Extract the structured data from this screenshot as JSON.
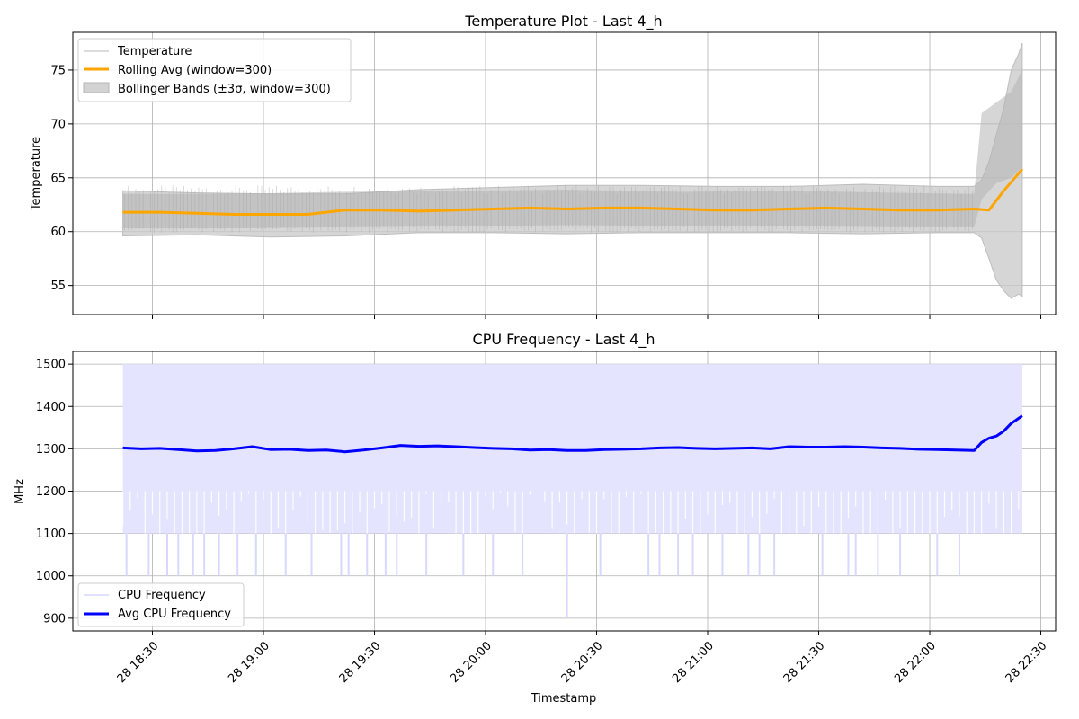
{
  "chart_data": [
    {
      "type": "line",
      "title": "Temperature Plot - Last 4_h",
      "xlabel": "",
      "ylabel": "Temperature",
      "ylim": [
        52.3,
        78.5
      ],
      "xlim_minutes": [
        -13.5,
        252
      ],
      "x_start_time": "28 18:22",
      "xticks": [
        "28 18:30",
        "28 19:00",
        "28 19:30",
        "28 20:00",
        "28 20:30",
        "28 21:00",
        "28 21:30",
        "28 22:00",
        "28 22:30"
      ],
      "yticks": [
        55,
        60,
        65,
        70,
        75
      ],
      "grid": true,
      "legend_position": "upper-left",
      "legend": [
        {
          "label": "Temperature",
          "color": "#dcdcdc"
        },
        {
          "label": "Rolling Avg (window=300)",
          "color": "#ffa500"
        },
        {
          "label": "Bollinger Bands (±3σ, window=300)",
          "color": "#c8c8c8"
        }
      ],
      "series": [
        {
          "name": "Temperature",
          "x_minutes": [
            0,
            30,
            60,
            90,
            120,
            150,
            180,
            210,
            230,
            232,
            236,
            240,
            243
          ],
          "low": [
            60.3,
            60.3,
            60.4,
            60.5,
            60.6,
            60.5,
            60.5,
            60.4,
            60.4,
            63.0,
            64.5,
            65.0,
            66.0
          ],
          "high": [
            63.5,
            63.5,
            63.7,
            63.8,
            63.9,
            63.7,
            63.8,
            63.6,
            63.5,
            71.0,
            72.0,
            73.0,
            75.0
          ]
        },
        {
          "name": "Rolling Avg (window=300)",
          "x_minutes": [
            0,
            10,
            20,
            30,
            40,
            50,
            60,
            70,
            80,
            90,
            100,
            110,
            120,
            130,
            140,
            150,
            160,
            170,
            180,
            190,
            200,
            210,
            220,
            230,
            234,
            238,
            241,
            243
          ],
          "values": [
            61.8,
            61.8,
            61.7,
            61.6,
            61.6,
            61.6,
            62.0,
            62.0,
            61.9,
            62.0,
            62.1,
            62.2,
            62.1,
            62.2,
            62.2,
            62.1,
            62.0,
            62.0,
            62.1,
            62.2,
            62.1,
            62.0,
            62.0,
            62.1,
            62.0,
            63.8,
            65.0,
            65.8
          ]
        },
        {
          "name": "Bollinger Bands (±3σ, window=300)",
          "x_minutes": [
            0,
            20,
            40,
            60,
            80,
            100,
            120,
            140,
            160,
            180,
            200,
            220,
            230,
            232,
            234,
            236,
            238,
            240,
            242,
            243
          ],
          "upper": [
            63.8,
            63.6,
            63.5,
            63.5,
            63.9,
            64.1,
            64.3,
            64.3,
            64.2,
            64.2,
            64.4,
            64.2,
            64.2,
            64.8,
            66.5,
            69.0,
            71.5,
            75.0,
            76.5,
            77.5
          ],
          "lower": [
            59.6,
            59.7,
            59.5,
            59.6,
            59.9,
            59.9,
            59.8,
            59.9,
            59.9,
            59.9,
            59.8,
            59.9,
            59.9,
            59.4,
            57.5,
            55.5,
            54.5,
            53.8,
            54.2,
            54.0
          ]
        }
      ]
    },
    {
      "type": "line",
      "title": "CPU Frequency - Last 4_h",
      "xlabel": "Timestamp",
      "ylabel": "MHz",
      "ylim": [
        870,
        1530
      ],
      "xlim_minutes": [
        -13.5,
        252
      ],
      "x_start_time": "28 18:22",
      "xticks": [
        "28 18:30",
        "28 19:00",
        "28 19:30",
        "28 20:00",
        "28 20:30",
        "28 21:00",
        "28 21:30",
        "28 22:00",
        "28 22:30"
      ],
      "yticks": [
        900,
        1000,
        1100,
        1200,
        1300,
        1400,
        1500
      ],
      "grid": true,
      "legend_position": "lower-left",
      "legend": [
        {
          "label": "CPU Frequency",
          "color": "#e0e0ff"
        },
        {
          "label": "Avg CPU Frequency",
          "color": "#0000ff"
        }
      ],
      "series": [
        {
          "name": "CPU Frequency",
          "x_minutes": [
            0,
            243
          ],
          "band_low": 1100,
          "band_high": 1500,
          "dips_minutes": [
            1,
            7,
            12,
            15,
            19,
            22,
            26,
            31,
            36,
            44,
            51,
            59,
            61,
            66,
            71,
            74,
            82,
            92,
            100,
            108,
            120,
            129,
            142,
            145,
            150,
            154,
            162,
            169,
            172,
            176,
            189,
            196,
            198,
            204,
            210,
            220,
            226,
            235,
            238
          ],
          "dips_values": [
            1000,
            1000,
            1000,
            1000,
            1000,
            1000,
            1000,
            1000,
            1000,
            1000,
            1000,
            1000,
            1000,
            1000,
            1000,
            1000,
            1000,
            1000,
            1000,
            1000,
            1000,
            1000,
            1000,
            1000,
            1000,
            1000,
            1000,
            1000,
            1000,
            1000,
            1000,
            1000,
            1000,
            1000,
            1000,
            1000,
            1000,
            1100,
            1100
          ],
          "deep_dip_minute": 120,
          "deep_dip_value": 900
        },
        {
          "name": "Avg CPU Frequency",
          "x_minutes": [
            0,
            5,
            10,
            15,
            20,
            25,
            30,
            35,
            40,
            45,
            50,
            55,
            60,
            65,
            70,
            75,
            80,
            85,
            90,
            95,
            100,
            105,
            110,
            115,
            120,
            125,
            130,
            135,
            140,
            145,
            150,
            155,
            160,
            165,
            170,
            175,
            180,
            185,
            190,
            195,
            200,
            205,
            210,
            215,
            220,
            225,
            230,
            232,
            234,
            236,
            238,
            240,
            243
          ],
          "values": [
            1302,
            1300,
            1301,
            1298,
            1295,
            1296,
            1300,
            1305,
            1298,
            1299,
            1296,
            1297,
            1293,
            1297,
            1302,
            1308,
            1306,
            1307,
            1305,
            1303,
            1301,
            1300,
            1297,
            1298,
            1296,
            1296,
            1298,
            1299,
            1300,
            1302,
            1303,
            1301,
            1300,
            1301,
            1302,
            1300,
            1305,
            1304,
            1304,
            1305,
            1304,
            1302,
            1301,
            1299,
            1298,
            1297,
            1296,
            1315,
            1325,
            1330,
            1342,
            1360,
            1378
          ]
        }
      ]
    }
  ]
}
